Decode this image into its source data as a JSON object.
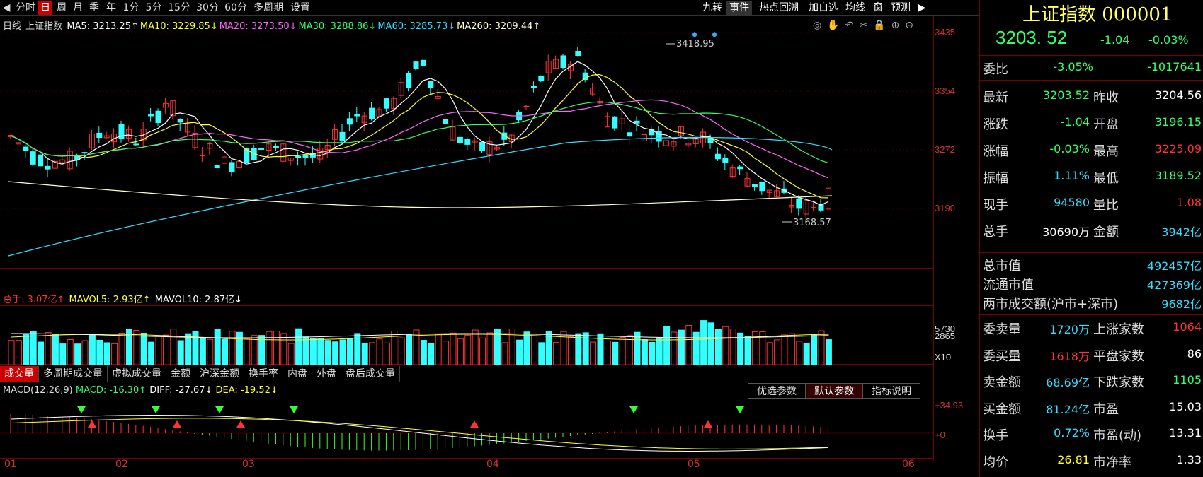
{
  "toolbar": {
    "left": [
      "◀",
      "分时",
      "日",
      "周",
      "月",
      "季",
      "年",
      "1分",
      "5分",
      "15分",
      "30分",
      "60分",
      "多周期",
      "设置"
    ],
    "active": "日",
    "right": [
      "九转",
      "事件",
      "热点回溯",
      "加自选",
      "均线",
      "窗",
      "预测",
      "▶"
    ],
    "active_right": "事件"
  },
  "main": {
    "period": "日线",
    "name": "上证指数",
    "ma": [
      {
        "label": "MA5: 3213.25↑",
        "color": "#ffffff"
      },
      {
        "label": "MA10: 3229.85↓",
        "color": "#ffff33"
      },
      {
        "label": "MA20: 3273.50↓",
        "color": "#ff66ff"
      },
      {
        "label": "MA30: 3288.86↓",
        "color": "#33ff66"
      },
      {
        "label": "MA60: 3285.73↓",
        "color": "#33ddff"
      },
      {
        "label": "MA260: 3209.44↑",
        "color": "#ffffcc"
      }
    ],
    "y_labels": [
      "3435",
      "3354",
      "3272",
      "3190"
    ],
    "high_marker": "3418.95",
    "low_marker": "3168.57",
    "tools": [
      "◎",
      "✋",
      "↶",
      "✂",
      "🔒",
      "⊕",
      "⊖"
    ]
  },
  "volume": {
    "label": "总手: 3.07亿↑",
    "mavol5": "MAVOL5: 2.93亿↑",
    "mavol10": "MAVOL10: 2.87亿↓",
    "y_labels": [
      "5730",
      "2865",
      "X10"
    ]
  },
  "indicator_tabs": [
    "成交量",
    "多周期成交量",
    "虚拟成交量",
    "金额",
    "沪深金额",
    "换手率",
    "内盘",
    "外盘",
    "盘后成交量"
  ],
  "indicator_active": "成交量",
  "macd": {
    "title": "MACD(12,26,9)",
    "macd": "MACD: -16.30↑",
    "diff": "DIFF: -27.67↓",
    "dea": "DEA: -19.52↓",
    "y_labels": [
      "+34.93",
      "+0"
    ],
    "buttons": [
      "优选参数",
      "默认参数",
      "指标说明"
    ],
    "button_active": "默认参数"
  },
  "dates": [
    "01",
    "02",
    "03",
    "04",
    "05",
    "06"
  ],
  "quote": {
    "title": "上证指数 000001",
    "price": "3203. 52",
    "change": "-1.04",
    "pct": "-0.03%",
    "webi_label": "委比",
    "webi": "-3.05%",
    "weicha": "-1017641",
    "rows": [
      {
        "k": "最新",
        "v": "3203.52",
        "vc": "g",
        "k2": "昨收",
        "v2": "3204.56",
        "v2c": "w"
      },
      {
        "k": "涨跌",
        "v": "-1.04",
        "vc": "g",
        "k2": "开盘",
        "v2": "3196.15",
        "v2c": "g"
      },
      {
        "k": "涨幅",
        "v": "-0.03%",
        "vc": "g",
        "k2": "最高",
        "v2": "3225.09",
        "v2c": "r"
      },
      {
        "k": "振幅",
        "v": "1.11%",
        "vc": "c",
        "k2": "最低",
        "v2": "3189.52",
        "v2c": "g"
      },
      {
        "k": "现手",
        "v": "94580",
        "vc": "c",
        "k2": "量比",
        "v2": "1.08",
        "v2c": "r"
      },
      {
        "k": "总手",
        "v": "30690万",
        "vc": "w",
        "k2": "金额",
        "v2": "3942亿",
        "v2c": "c"
      }
    ],
    "cap_rows": [
      {
        "k": "总市值",
        "v": "492457亿"
      },
      {
        "k": "流通市值",
        "v": "427369亿"
      },
      {
        "k": "两市成交额(沪市+深市)",
        "v": "9682亿"
      }
    ],
    "order_rows": [
      {
        "k": "委卖量",
        "v": "1720万",
        "vc": "c",
        "k2": "上涨家数",
        "v2": "1064",
        "v2c": "r"
      },
      {
        "k": "委买量",
        "v": "1618万",
        "vc": "r",
        "k2": "平盘家数",
        "v2": "86",
        "v2c": "w"
      },
      {
        "k": "卖金额",
        "v": "68.69亿",
        "vc": "c",
        "k2": "下跌家数",
        "v2": "1105",
        "v2c": "g"
      },
      {
        "k": "买金额",
        "v": "81.24亿",
        "vc": "c",
        "k2": "市盈",
        "v2": "15.03",
        "v2c": "w"
      },
      {
        "k": "换手",
        "v": "0.72%",
        "vc": "c",
        "k2": "市盈(动)",
        "v2": "13.31",
        "v2c": "w"
      },
      {
        "k": "均价",
        "v": "26.81",
        "vc": "y",
        "k2": "市净率",
        "v2": "1.33",
        "v2c": "w"
      }
    ]
  }
}
